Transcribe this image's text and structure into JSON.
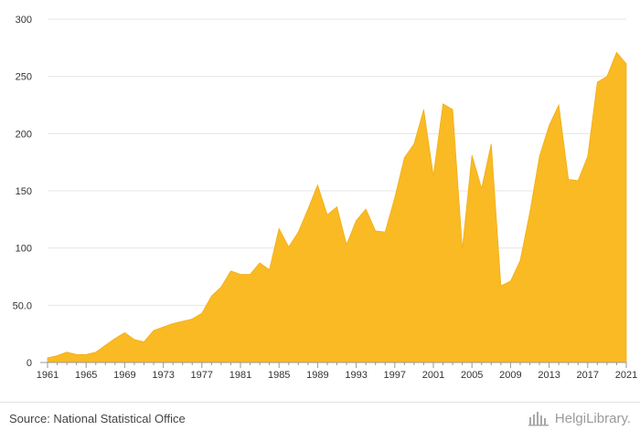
{
  "chart_data": {
    "type": "area",
    "title": "",
    "xlabel": "",
    "ylabel": "",
    "ylim": [
      0,
      300
    ],
    "y_ticks": [
      "0",
      "50.0",
      "100",
      "150",
      "200",
      "250",
      "300"
    ],
    "x_tick_labels": [
      "1961",
      "1965",
      "1969",
      "1973",
      "1977",
      "1981",
      "1985",
      "1989",
      "1993",
      "1997",
      "2001",
      "2005",
      "2009",
      "2013",
      "2017",
      "2021"
    ],
    "grid": true,
    "fill_color": "#F9BA24",
    "line_color": "#F2AE14",
    "x": [
      1961,
      1962,
      1963,
      1964,
      1965,
      1966,
      1967,
      1968,
      1969,
      1970,
      1971,
      1972,
      1973,
      1974,
      1975,
      1976,
      1977,
      1978,
      1979,
      1980,
      1981,
      1982,
      1983,
      1984,
      1985,
      1986,
      1987,
      1988,
      1989,
      1990,
      1991,
      1992,
      1993,
      1994,
      1995,
      1996,
      1997,
      1998,
      1999,
      2000,
      2001,
      2002,
      2003,
      2004,
      2005,
      2006,
      2007,
      2008,
      2009,
      2010,
      2011,
      2012,
      2013,
      2014,
      2015,
      2016,
      2017,
      2018,
      2019,
      2020,
      2021
    ],
    "values": [
      4,
      6,
      9,
      7,
      7,
      9,
      15,
      21,
      26,
      20,
      18,
      28,
      31,
      34,
      36,
      38,
      43,
      58,
      66,
      80,
      77,
      77,
      87,
      81,
      117,
      101,
      114,
      134,
      155,
      129,
      136,
      103,
      124,
      134,
      115,
      114,
      144,
      179,
      191,
      221,
      163,
      226,
      221,
      99,
      181,
      152,
      191,
      67,
      71,
      89,
      131,
      180,
      207,
      225,
      160,
      159,
      180,
      245,
      250,
      271,
      261
    ]
  },
  "footer": {
    "source": "Source: National Statistical Office",
    "brand": "HelgiLibrary."
  }
}
